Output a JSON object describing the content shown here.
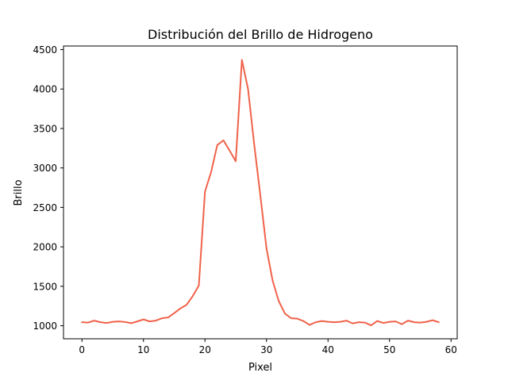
{
  "chart_data": {
    "type": "line",
    "title": "Distribución del Brillo de Hidrogeno",
    "xlabel": "Pixel",
    "ylabel": "Brillo",
    "xlim": [
      -3,
      61
    ],
    "ylim": [
      835,
      4545
    ],
    "xticks": [
      0,
      10,
      20,
      30,
      40,
      50,
      60
    ],
    "yticks": [
      1000,
      1500,
      2000,
      2500,
      3000,
      3500,
      4000,
      4500
    ],
    "grid": false,
    "line_color": "#f0624a",
    "series": [
      {
        "x": [
          0,
          1,
          2,
          3,
          4,
          5,
          6,
          7,
          8,
          9,
          10,
          11,
          12,
          13,
          14,
          15,
          16,
          17,
          18,
          19,
          20,
          21,
          22,
          23,
          24,
          25,
          26,
          27,
          28,
          29,
          30,
          31,
          32,
          33,
          34,
          35,
          36,
          37,
          38,
          39,
          40,
          41,
          42,
          43,
          44,
          45,
          46,
          47,
          48,
          49,
          50,
          51,
          52,
          53,
          54,
          55,
          56,
          57,
          58
        ],
        "values": [
          1045,
          1040,
          1065,
          1045,
          1035,
          1050,
          1055,
          1048,
          1032,
          1055,
          1080,
          1055,
          1065,
          1095,
          1105,
          1160,
          1220,
          1265,
          1375,
          1510,
          2700,
          2950,
          3290,
          3350,
          3220,
          3085,
          4370,
          4000,
          3300,
          2650,
          1980,
          1570,
          1310,
          1155,
          1095,
          1090,
          1060,
          1010,
          1045,
          1060,
          1050,
          1045,
          1050,
          1065,
          1030,
          1045,
          1040,
          1005,
          1060,
          1035,
          1050,
          1055,
          1020,
          1065,
          1045,
          1040,
          1050,
          1070,
          1045
        ]
      }
    ]
  }
}
